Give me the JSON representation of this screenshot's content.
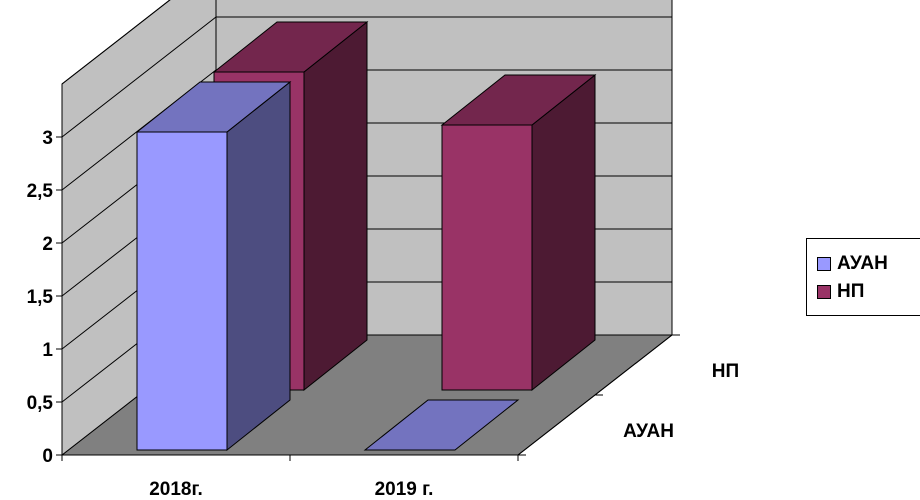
{
  "chart_data": {
    "type": "bar",
    "style": "3d-column",
    "categories": [
      "2018г.",
      "2019 г."
    ],
    "series": [
      {
        "name": "АУАН",
        "values": [
          3,
          0
        ],
        "color": "#9999ff"
      },
      {
        "name": "НП",
        "values": [
          3,
          2.5
        ],
        "color": "#993366"
      }
    ],
    "ylim": [
      0,
      3.5
    ],
    "yticks": [
      "0",
      "0,5",
      "1",
      "1,5",
      "2",
      "2,5",
      "3"
    ],
    "depth_labels": [
      "АУАН",
      "НП"
    ],
    "grid": true,
    "legend_position": "right",
    "wall_color": "#c0c0c0",
    "floor_color": "#808080"
  },
  "legend": {
    "items": [
      {
        "label": "АУАН",
        "color": "#9999ff"
      },
      {
        "label": "НП",
        "color": "#993366"
      }
    ]
  }
}
